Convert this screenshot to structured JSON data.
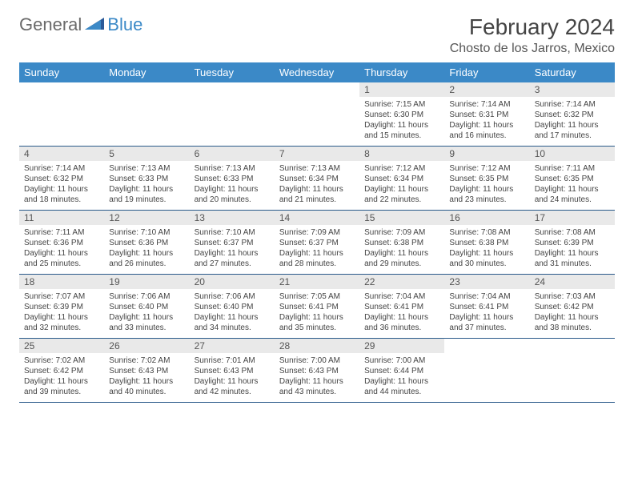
{
  "logo": {
    "general": "General",
    "blue": "Blue"
  },
  "title": "February 2024",
  "location": "Chosto de los Jarros, Mexico",
  "colors": {
    "header_bg": "#3b89c7",
    "header_text": "#ffffff",
    "daynum_bg": "#e9e9e9",
    "row_border": "#2a5a8a",
    "body_text": "#444444",
    "logo_gray": "#6a6a6a",
    "logo_blue": "#3b89c7"
  },
  "daysOfWeek": [
    "Sunday",
    "Monday",
    "Tuesday",
    "Wednesday",
    "Thursday",
    "Friday",
    "Saturday"
  ],
  "startOffset": 4,
  "days": [
    {
      "n": 1,
      "sr": "7:15 AM",
      "ss": "6:30 PM",
      "dl": "11 hours and 15 minutes."
    },
    {
      "n": 2,
      "sr": "7:14 AM",
      "ss": "6:31 PM",
      "dl": "11 hours and 16 minutes."
    },
    {
      "n": 3,
      "sr": "7:14 AM",
      "ss": "6:32 PM",
      "dl": "11 hours and 17 minutes."
    },
    {
      "n": 4,
      "sr": "7:14 AM",
      "ss": "6:32 PM",
      "dl": "11 hours and 18 minutes."
    },
    {
      "n": 5,
      "sr": "7:13 AM",
      "ss": "6:33 PM",
      "dl": "11 hours and 19 minutes."
    },
    {
      "n": 6,
      "sr": "7:13 AM",
      "ss": "6:33 PM",
      "dl": "11 hours and 20 minutes."
    },
    {
      "n": 7,
      "sr": "7:13 AM",
      "ss": "6:34 PM",
      "dl": "11 hours and 21 minutes."
    },
    {
      "n": 8,
      "sr": "7:12 AM",
      "ss": "6:34 PM",
      "dl": "11 hours and 22 minutes."
    },
    {
      "n": 9,
      "sr": "7:12 AM",
      "ss": "6:35 PM",
      "dl": "11 hours and 23 minutes."
    },
    {
      "n": 10,
      "sr": "7:11 AM",
      "ss": "6:35 PM",
      "dl": "11 hours and 24 minutes."
    },
    {
      "n": 11,
      "sr": "7:11 AM",
      "ss": "6:36 PM",
      "dl": "11 hours and 25 minutes."
    },
    {
      "n": 12,
      "sr": "7:10 AM",
      "ss": "6:36 PM",
      "dl": "11 hours and 26 minutes."
    },
    {
      "n": 13,
      "sr": "7:10 AM",
      "ss": "6:37 PM",
      "dl": "11 hours and 27 minutes."
    },
    {
      "n": 14,
      "sr": "7:09 AM",
      "ss": "6:37 PM",
      "dl": "11 hours and 28 minutes."
    },
    {
      "n": 15,
      "sr": "7:09 AM",
      "ss": "6:38 PM",
      "dl": "11 hours and 29 minutes."
    },
    {
      "n": 16,
      "sr": "7:08 AM",
      "ss": "6:38 PM",
      "dl": "11 hours and 30 minutes."
    },
    {
      "n": 17,
      "sr": "7:08 AM",
      "ss": "6:39 PM",
      "dl": "11 hours and 31 minutes."
    },
    {
      "n": 18,
      "sr": "7:07 AM",
      "ss": "6:39 PM",
      "dl": "11 hours and 32 minutes."
    },
    {
      "n": 19,
      "sr": "7:06 AM",
      "ss": "6:40 PM",
      "dl": "11 hours and 33 minutes."
    },
    {
      "n": 20,
      "sr": "7:06 AM",
      "ss": "6:40 PM",
      "dl": "11 hours and 34 minutes."
    },
    {
      "n": 21,
      "sr": "7:05 AM",
      "ss": "6:41 PM",
      "dl": "11 hours and 35 minutes."
    },
    {
      "n": 22,
      "sr": "7:04 AM",
      "ss": "6:41 PM",
      "dl": "11 hours and 36 minutes."
    },
    {
      "n": 23,
      "sr": "7:04 AM",
      "ss": "6:41 PM",
      "dl": "11 hours and 37 minutes."
    },
    {
      "n": 24,
      "sr": "7:03 AM",
      "ss": "6:42 PM",
      "dl": "11 hours and 38 minutes."
    },
    {
      "n": 25,
      "sr": "7:02 AM",
      "ss": "6:42 PM",
      "dl": "11 hours and 39 minutes."
    },
    {
      "n": 26,
      "sr": "7:02 AM",
      "ss": "6:43 PM",
      "dl": "11 hours and 40 minutes."
    },
    {
      "n": 27,
      "sr": "7:01 AM",
      "ss": "6:43 PM",
      "dl": "11 hours and 42 minutes."
    },
    {
      "n": 28,
      "sr": "7:00 AM",
      "ss": "6:43 PM",
      "dl": "11 hours and 43 minutes."
    },
    {
      "n": 29,
      "sr": "7:00 AM",
      "ss": "6:44 PM",
      "dl": "11 hours and 44 minutes."
    }
  ],
  "labels": {
    "sunrise": "Sunrise: ",
    "sunset": "Sunset: ",
    "daylight": "Daylight: "
  }
}
